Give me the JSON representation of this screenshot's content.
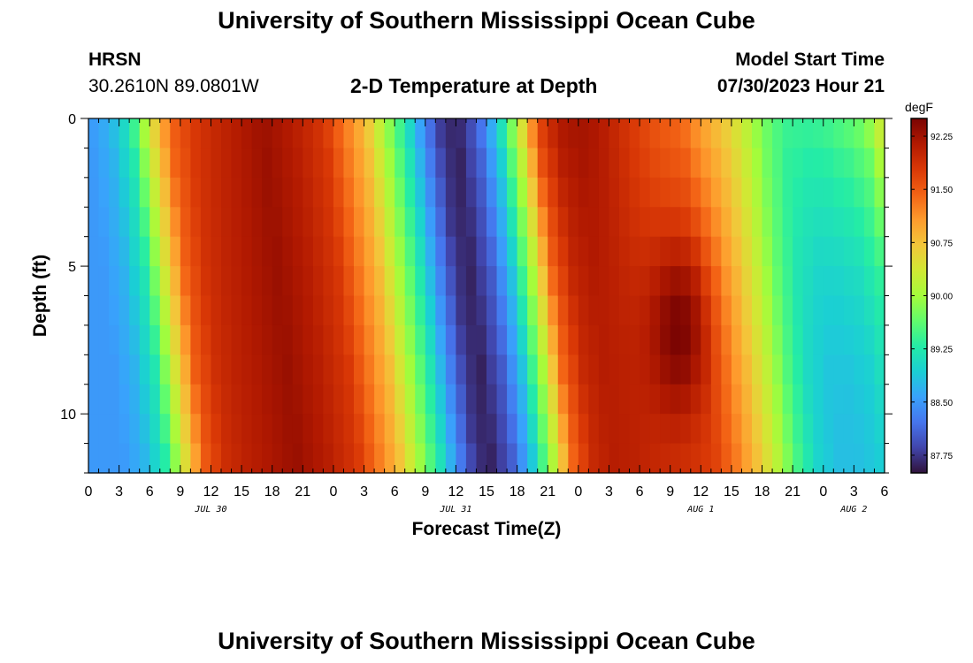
{
  "page": {
    "title_top": "University of Southern Mississippi Ocean Cube",
    "title_bottom": "University of Southern Mississippi Ocean Cube",
    "station_name": "HRSN",
    "station_coords": "30.2610N  89.0801W",
    "plot_title": "2-D Temperature at Depth",
    "model_start_label": "Model Start Time",
    "model_start_value": "07/30/2023 Hour 21"
  },
  "colors": {
    "colormap": [
      "#30123b",
      "#4145ab",
      "#4675ed",
      "#39a2fc",
      "#1bcfd4",
      "#24eca6",
      "#61fc6c",
      "#a4fc3b",
      "#d1e834",
      "#f3c63a",
      "#fe9b2d",
      "#f36315",
      "#d93806",
      "#b11901",
      "#7a0402"
    ]
  },
  "chart_data": {
    "type": "heatmap",
    "xlabel": "Forecast Time(Z)",
    "ylabel": "Depth (ft)",
    "x_tick_labels": [
      "0",
      "3",
      "6",
      "9",
      "12",
      "15",
      "18",
      "21",
      "0",
      "3",
      "6",
      "9",
      "12",
      "15",
      "18",
      "21",
      "0",
      "3",
      "6",
      "9",
      "12",
      "15",
      "18",
      "21",
      "0",
      "3",
      "6"
    ],
    "x_range_hours": [
      0,
      78
    ],
    "day_labels": [
      {
        "text": "JUL 30",
        "hour": 12
      },
      {
        "text": "JUL 31",
        "hour": 36
      },
      {
        "text": "AUG 1",
        "hour": 60
      },
      {
        "text": "AUG 2",
        "hour": 75
      }
    ],
    "y_tick_labels": [
      "0",
      "5",
      "10"
    ],
    "y_range_ft": [
      0,
      12
    ],
    "colorbar_unit": "degF",
    "colorbar_tick_labels": [
      "92.25",
      "91.50",
      "90.75",
      "90.00",
      "89.25",
      "88.50",
      "87.75"
    ],
    "value_range": [
      87.5,
      92.5
    ],
    "time_profile_degF": [
      [
        0,
        88.5
      ],
      [
        2,
        88.7
      ],
      [
        4,
        89.2
      ],
      [
        6,
        90.4
      ],
      [
        8,
        91.5
      ],
      [
        10,
        91.9
      ],
      [
        12,
        92.05
      ],
      [
        15,
        92.2
      ],
      [
        17,
        92.3
      ],
      [
        20,
        92.1
      ],
      [
        23,
        91.8
      ],
      [
        25,
        91.3
      ],
      [
        27,
        90.8
      ],
      [
        29,
        90.0
      ],
      [
        31,
        89.2
      ],
      [
        33,
        88.3
      ],
      [
        34.5,
        87.75
      ],
      [
        36,
        87.6
      ],
      [
        38,
        88.0
      ],
      [
        40,
        88.8
      ],
      [
        42,
        90.0
      ],
      [
        44,
        91.4
      ],
      [
        46,
        91.95
      ],
      [
        48,
        92.1
      ],
      [
        50,
        92.05
      ],
      [
        53,
        91.9
      ],
      [
        56,
        91.8
      ],
      [
        58,
        91.7
      ],
      [
        60,
        91.3
      ],
      [
        62,
        90.8
      ],
      [
        64,
        90.2
      ],
      [
        66,
        89.5
      ],
      [
        68,
        89.0
      ],
      [
        70,
        88.8
      ],
      [
        72,
        88.8
      ],
      [
        74,
        88.9
      ],
      [
        76,
        89.2
      ],
      [
        78,
        90.0
      ]
    ],
    "surface_anomaly_degF": [
      [
        0,
        0.0
      ],
      [
        6,
        0.0
      ],
      [
        10,
        -0.15
      ],
      [
        18,
        0.0
      ],
      [
        24,
        0.0
      ],
      [
        36,
        0.0
      ],
      [
        44,
        0.25
      ],
      [
        50,
        0.1
      ],
      [
        56,
        -0.3
      ],
      [
        60,
        -0.3
      ],
      [
        64,
        0.1
      ],
      [
        70,
        0.6
      ],
      [
        74,
        0.7
      ],
      [
        78,
        0.5
      ]
    ],
    "warm_core": {
      "hour_center": 58,
      "hour_halfwidth": 3,
      "depth_center_ft": 7,
      "depth_halfwidth_ft": 3,
      "amplitude_degF": 0.75
    },
    "lag_hours_at_bottom": 3.5
  }
}
